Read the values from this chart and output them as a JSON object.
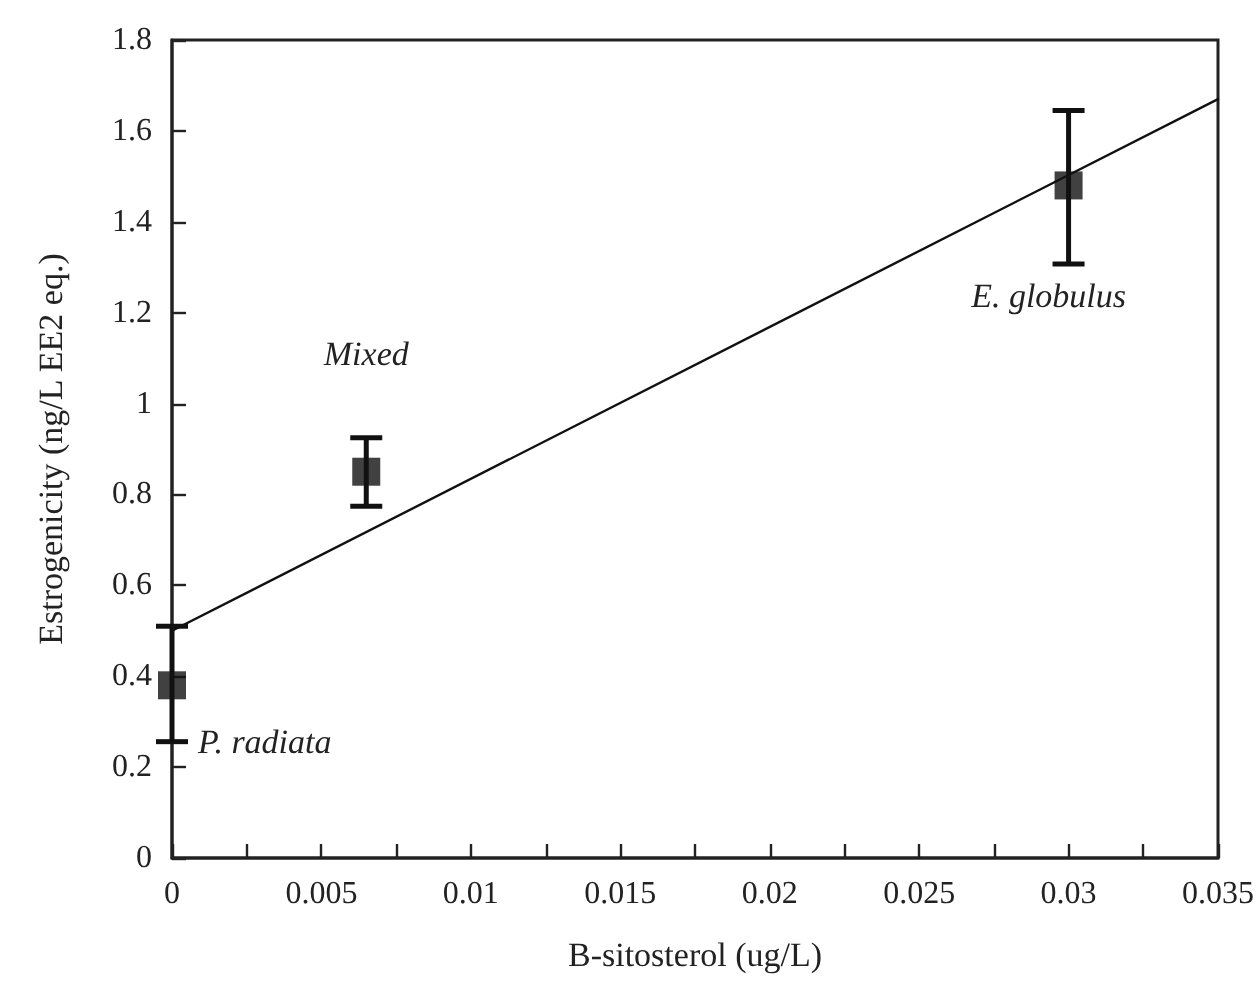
{
  "chart_data": {
    "type": "scatter",
    "xlabel": "B-sitosterol (ug/L)",
    "ylabel": "Estrogenicity (ng/L EE2 eq.)",
    "series": [
      {
        "type": "scatter",
        "color": "#111111",
        "marker": "square",
        "x": [
          0,
          0.0065,
          0.03
        ],
        "values": [
          0.38,
          0.85,
          1.48
        ],
        "errors": [
          [
            0.256,
            0.51
          ],
          [
            0.774,
            0.925
          ],
          [
            1.307,
            1.645
          ]
        ]
      },
      {
        "type": "line",
        "color": "#111111",
        "marker": "none",
        "x": [
          0,
          0.035
        ],
        "values": [
          0.5,
          1.67
        ]
      }
    ],
    "annotations": [
      {
        "text": "Mixed",
        "x": 0.0065,
        "y": 0.85
      },
      {
        "text": "P. radiata",
        "x": 0,
        "y": 0.38
      },
      {
        "text": "E. globulus",
        "x": 0.03,
        "y": 1.48
      }
    ],
    "xlim": [
      0,
      0.035
    ],
    "xticks": [
      0,
      {
        "value": 0.0025,
        "label": null
      },
      0.005,
      {
        "value": 0.0075,
        "label": null
      },
      0.01,
      {
        "value": 0.0125,
        "label": null
      },
      0.015,
      {
        "value": 0.0175,
        "label": null
      },
      0.02,
      {
        "value": 0.0225,
        "label": null
      },
      0.025,
      {
        "value": 0.0275,
        "label": null
      },
      0.03,
      {
        "value": 0.0325,
        "label": null
      },
      0.035
    ],
    "ylim": [
      0,
      1.8
    ],
    "yticks": [
      0,
      0.2,
      0.4,
      0.6,
      0.8,
      1,
      1.2,
      1.4,
      1.6,
      1.8
    ],
    "grid": false
  }
}
